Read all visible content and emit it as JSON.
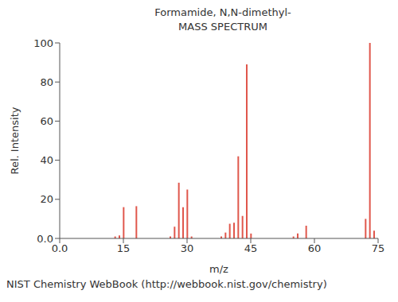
{
  "chart_data": {
    "type": "bar",
    "title": "Formamide, N,N-dimethyl-",
    "subtitle": "MASS SPECTRUM",
    "annotations": [
      "NIST Chemistry WebBook (http://webbook.nist.gov/chemistry)"
    ],
    "x_label": "m/z",
    "y_label": "Rel. Intensity",
    "x": [
      13,
      14,
      15,
      18,
      26,
      27,
      28,
      29,
      30,
      31,
      38,
      39,
      40,
      41,
      42,
      43,
      44,
      45,
      55,
      56,
      58,
      72,
      73,
      74
    ],
    "values": [
      1,
      1.5,
      16,
      16.5,
      1,
      6,
      28.5,
      16,
      25,
      1,
      1,
      3,
      7.5,
      8,
      42,
      11.5,
      89,
      2.5,
      1,
      2.5,
      6.5,
      10,
      100,
      4
    ],
    "color": "#e0574c",
    "xlim": [
      0,
      75
    ],
    "xticks": [
      {
        "value": 0,
        "label": "0.0"
      },
      15,
      30,
      45,
      60,
      75
    ],
    "ylim": [
      0,
      100
    ],
    "yticks": [
      {
        "value": 0,
        "label": "0.0"
      },
      20,
      40,
      60,
      80,
      100
    ],
    "grid": false
  }
}
